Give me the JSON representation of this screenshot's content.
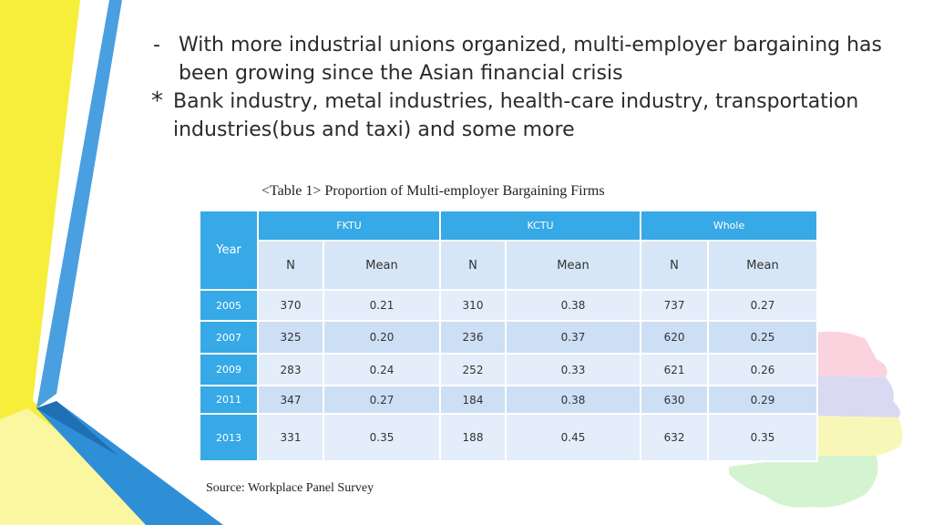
{
  "bullets": [
    {
      "marker": "-",
      "lines": [
        "With more industrial unions organized, multi-employer bargaining has",
        "been growing since the Asian financial crisis"
      ]
    },
    {
      "marker": "*",
      "lines": [
        "Bank industry, metal industries, health-care industry, transportation",
        "industries(bus and taxi) and some more"
      ]
    }
  ],
  "table": {
    "caption": "<Table 1> Proportion of Multi-employer Bargaining Firms",
    "year_header": "Year",
    "groups": [
      "FKTU",
      "KCTU",
      "Whole"
    ],
    "sub_headers": [
      "N",
      "Mean",
      "N",
      "Mean",
      "N",
      "Mean"
    ],
    "rows": [
      {
        "year": "2005",
        "cells": [
          "370",
          "0.21",
          "310",
          "0.38",
          "737",
          "0.27"
        ]
      },
      {
        "year": "2007",
        "cells": [
          "325",
          "0.20",
          "236",
          "0.37",
          "620",
          "0.25"
        ]
      },
      {
        "year": "2009",
        "cells": [
          "283",
          "0.24",
          "252",
          "0.33",
          "621",
          "0.26"
        ]
      },
      {
        "year": "2011",
        "cells": [
          "347",
          "0.27",
          "184",
          "0.38",
          "630",
          "0.29"
        ]
      },
      {
        "year": "2013",
        "cells": [
          "331",
          "0.35",
          "188",
          "0.45",
          "632",
          "0.35"
        ]
      }
    ]
  },
  "source": "Source: Workplace Panel Survey",
  "colors": {
    "header_blue": "#36a9e6",
    "row_light": "#e4eefa",
    "row_dark": "#cddff5",
    "stripe_yellow": "#f7ee3c",
    "stripe_blue": "#2f8fd6"
  }
}
